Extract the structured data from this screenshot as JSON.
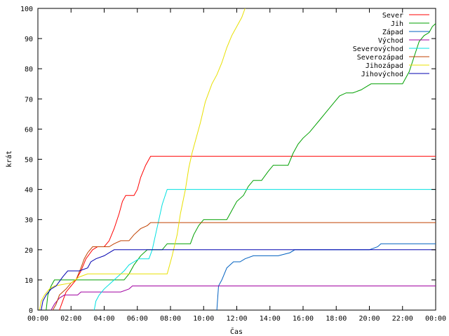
{
  "chart_data": {
    "type": "line",
    "xlabel": "Čas",
    "ylabel": "krát",
    "xlim": [
      0,
      24
    ],
    "ylim": [
      0,
      100
    ],
    "xticks": [
      {
        "x": 0,
        "label": "00:00"
      },
      {
        "x": 2,
        "label": "02:00"
      },
      {
        "x": 4,
        "label": "04:00"
      },
      {
        "x": 6,
        "label": "06:00"
      },
      {
        "x": 8,
        "label": "08:00"
      },
      {
        "x": 10,
        "label": "10:00"
      },
      {
        "x": 12,
        "label": "12:00"
      },
      {
        "x": 14,
        "label": "14:00"
      },
      {
        "x": 16,
        "label": "16:00"
      },
      {
        "x": 18,
        "label": "18:00"
      },
      {
        "x": 20,
        "label": "20:00"
      },
      {
        "x": 22,
        "label": "22:00"
      },
      {
        "x": 24,
        "label": "00:00"
      }
    ],
    "yticks": [
      0,
      10,
      20,
      30,
      40,
      50,
      60,
      70,
      80,
      90,
      100
    ],
    "grid": false,
    "legend_position": "top-right",
    "series": [
      {
        "name": "Sever",
        "color": "#ff0000",
        "points": [
          [
            1.3,
            0
          ],
          [
            1.5,
            3
          ],
          [
            1.7,
            6
          ],
          [
            2.0,
            8
          ],
          [
            2.3,
            10
          ],
          [
            2.6,
            13
          ],
          [
            2.9,
            17
          ],
          [
            3.3,
            20
          ],
          [
            3.6,
            21
          ],
          [
            4.0,
            21
          ],
          [
            4.3,
            23
          ],
          [
            4.6,
            27
          ],
          [
            4.9,
            32
          ],
          [
            5.1,
            36
          ],
          [
            5.3,
            38
          ],
          [
            5.8,
            38
          ],
          [
            6.0,
            40
          ],
          [
            6.2,
            44
          ],
          [
            6.5,
            48
          ],
          [
            6.8,
            51
          ],
          [
            24,
            51
          ]
        ]
      },
      {
        "name": "Jih",
        "color": "#00a000",
        "points": [
          [
            0.5,
            0
          ],
          [
            0.6,
            5
          ],
          [
            0.8,
            8
          ],
          [
            1.0,
            10
          ],
          [
            2.0,
            10
          ],
          [
            2.5,
            10
          ],
          [
            3.0,
            10
          ],
          [
            4.0,
            10
          ],
          [
            5.2,
            10
          ],
          [
            5.5,
            12
          ],
          [
            5.8,
            15
          ],
          [
            6.2,
            18
          ],
          [
            6.6,
            20
          ],
          [
            7.0,
            20
          ],
          [
            7.5,
            20
          ],
          [
            7.8,
            22
          ],
          [
            8.5,
            22
          ],
          [
            9.2,
            22
          ],
          [
            9.4,
            25
          ],
          [
            9.7,
            28
          ],
          [
            10.0,
            30
          ],
          [
            11.4,
            30
          ],
          [
            11.7,
            33
          ],
          [
            12.0,
            36
          ],
          [
            12.4,
            38
          ],
          [
            12.7,
            41
          ],
          [
            13.0,
            43
          ],
          [
            13.5,
            43
          ],
          [
            13.9,
            46
          ],
          [
            14.2,
            48
          ],
          [
            15.1,
            48
          ],
          [
            15.4,
            52
          ],
          [
            15.7,
            55
          ],
          [
            16.0,
            57
          ],
          [
            16.4,
            59
          ],
          [
            16.7,
            61
          ],
          [
            17.0,
            63
          ],
          [
            17.3,
            65
          ],
          [
            17.6,
            67
          ],
          [
            17.9,
            69
          ],
          [
            18.2,
            71
          ],
          [
            18.6,
            72
          ],
          [
            19.0,
            72
          ],
          [
            19.5,
            73
          ],
          [
            19.8,
            74
          ],
          [
            20.1,
            75
          ],
          [
            21.5,
            75
          ],
          [
            22.0,
            75
          ],
          [
            22.4,
            79
          ],
          [
            22.7,
            84
          ],
          [
            23.0,
            89
          ],
          [
            23.3,
            91
          ],
          [
            23.6,
            92
          ],
          [
            23.8,
            94
          ],
          [
            24,
            95
          ]
        ]
      },
      {
        "name": "Západ",
        "color": "#0060c0",
        "points": [
          [
            10.8,
            0
          ],
          [
            10.9,
            8
          ],
          [
            11.1,
            10
          ],
          [
            11.4,
            14
          ],
          [
            11.8,
            16
          ],
          [
            12.2,
            16
          ],
          [
            12.5,
            17
          ],
          [
            13.0,
            18
          ],
          [
            14.5,
            18
          ],
          [
            15.2,
            19
          ],
          [
            15.5,
            20
          ],
          [
            17.0,
            20
          ],
          [
            20.0,
            20
          ],
          [
            20.5,
            21
          ],
          [
            20.7,
            22
          ],
          [
            24,
            22
          ]
        ]
      },
      {
        "name": "Východ",
        "color": "#a000a0",
        "points": [
          [
            0.8,
            0
          ],
          [
            1.0,
            2
          ],
          [
            1.3,
            4
          ],
          [
            1.6,
            5
          ],
          [
            2.4,
            5
          ],
          [
            2.6,
            6
          ],
          [
            3.2,
            6
          ],
          [
            3.6,
            6
          ],
          [
            4.1,
            6
          ],
          [
            5.0,
            6
          ],
          [
            5.5,
            7
          ],
          [
            5.7,
            8
          ],
          [
            10.0,
            8
          ],
          [
            24,
            8
          ]
        ]
      },
      {
        "name": "Severovýchod",
        "color": "#00e0e0",
        "points": [
          [
            3.4,
            0
          ],
          [
            3.5,
            3
          ],
          [
            3.7,
            5
          ],
          [
            4.0,
            7
          ],
          [
            4.4,
            9
          ],
          [
            4.8,
            11
          ],
          [
            5.2,
            13
          ],
          [
            5.5,
            15
          ],
          [
            5.8,
            16
          ],
          [
            6.1,
            17
          ],
          [
            6.7,
            17
          ],
          [
            6.9,
            20
          ],
          [
            7.1,
            25
          ],
          [
            7.3,
            30
          ],
          [
            7.5,
            35
          ],
          [
            7.8,
            40
          ],
          [
            24,
            40
          ]
        ]
      },
      {
        "name": "Severozápad",
        "color": "#c04000",
        "points": [
          [
            0.9,
            0
          ],
          [
            1.1,
            2
          ],
          [
            1.3,
            5
          ],
          [
            1.7,
            7
          ],
          [
            2.0,
            9
          ],
          [
            2.3,
            10
          ],
          [
            2.6,
            14
          ],
          [
            2.8,
            17
          ],
          [
            3.0,
            19
          ],
          [
            3.3,
            21
          ],
          [
            3.8,
            21
          ],
          [
            4.3,
            21
          ],
          [
            4.6,
            22
          ],
          [
            5.0,
            23
          ],
          [
            5.5,
            23
          ],
          [
            5.8,
            25
          ],
          [
            6.2,
            27
          ],
          [
            6.6,
            28
          ],
          [
            6.8,
            29
          ],
          [
            24,
            29
          ]
        ]
      },
      {
        "name": "Jihozápad",
        "color": "#e8e000",
        "points": [
          [
            0.1,
            0
          ],
          [
            0.2,
            3
          ],
          [
            0.4,
            5
          ],
          [
            0.7,
            7
          ],
          [
            1.0,
            8
          ],
          [
            2.0,
            9
          ],
          [
            2.5,
            11
          ],
          [
            3.0,
            12
          ],
          [
            7.8,
            12
          ],
          [
            8.1,
            18
          ],
          [
            8.4,
            25
          ],
          [
            8.6,
            32
          ],
          [
            8.9,
            40
          ],
          [
            9.1,
            47
          ],
          [
            9.3,
            52
          ],
          [
            9.5,
            56
          ],
          [
            9.8,
            62
          ],
          [
            10.1,
            69
          ],
          [
            10.5,
            75
          ],
          [
            10.8,
            78
          ],
          [
            11.1,
            82
          ],
          [
            11.4,
            87
          ],
          [
            11.7,
            91
          ],
          [
            12.0,
            94
          ],
          [
            12.3,
            97
          ],
          [
            12.5,
            100
          ]
        ]
      },
      {
        "name": "Jihovýchod",
        "color": "#0000b0",
        "points": [
          [
            0.2,
            0
          ],
          [
            0.3,
            3
          ],
          [
            0.5,
            5
          ],
          [
            0.8,
            7
          ],
          [
            1.1,
            8
          ],
          [
            1.5,
            11
          ],
          [
            1.8,
            13
          ],
          [
            2.5,
            13
          ],
          [
            3.0,
            14
          ],
          [
            3.2,
            16
          ],
          [
            3.5,
            17
          ],
          [
            4.0,
            18
          ],
          [
            4.3,
            19
          ],
          [
            4.6,
            20
          ],
          [
            5.0,
            20
          ],
          [
            24,
            20
          ]
        ]
      }
    ]
  }
}
